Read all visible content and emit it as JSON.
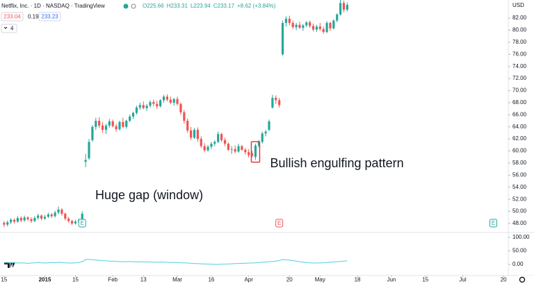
{
  "header": {
    "symbol": "Netflix, Inc. · 1D · NASDAQ · TradingView",
    "ohlc": [
      "O225.66",
      "H233.31",
      "L223.94",
      "C233.17",
      "+8.62 (+3.84%)"
    ],
    "bid": "233.04",
    "spread": "0.19",
    "ask": "233.23",
    "indicators": "4"
  },
  "chart_data": [
    {
      "type": "candlestick",
      "currency": "USD",
      "up_color": "#26a69a",
      "down_color": "#ef5350",
      "grid": false,
      "annotations": [
        {
          "text": "Huge gap (window)"
        },
        {
          "text": "Bullish engulfing pattern",
          "index": 74
        }
      ],
      "events": [
        {
          "index": 23,
          "label": "E"
        },
        {
          "index": 81,
          "label": "E"
        },
        {
          "index": 144,
          "label": "E"
        }
      ],
      "xlim": [
        -1.2,
        148.4
      ],
      "xticks": [
        {
          "value": 0,
          "label": "15"
        },
        {
          "value": 12,
          "label": "2015"
        },
        {
          "value": 21,
          "label": "15"
        },
        {
          "value": 32,
          "label": "Feb"
        },
        {
          "value": 41,
          "label": "13"
        },
        {
          "value": 51,
          "label": "Mar"
        },
        {
          "value": 61,
          "label": "16"
        },
        {
          "value": 72,
          "label": "Apr"
        },
        {
          "value": 84,
          "label": "20"
        },
        {
          "value": 93,
          "label": "May"
        },
        {
          "value": 104,
          "label": "18"
        },
        {
          "value": 114,
          "label": "Jun"
        },
        {
          "value": 124,
          "label": "15"
        },
        {
          "value": 135,
          "label": "Jul"
        },
        {
          "value": 147,
          "label": "20"
        }
      ],
      "ylim": [
        46.5,
        85
      ],
      "yticks": [
        {
          "value": 48,
          "label": "48.00"
        },
        {
          "value": 50,
          "label": "50.00"
        },
        {
          "value": 52,
          "label": "52.00"
        },
        {
          "value": 54,
          "label": "54.00"
        },
        {
          "value": 56,
          "label": "56.00"
        },
        {
          "value": 58,
          "label": "58.00"
        },
        {
          "value": 60,
          "label": "60.00"
        },
        {
          "value": 62,
          "label": "62.00"
        },
        {
          "value": 64,
          "label": "64.00"
        },
        {
          "value": 66,
          "label": "66.00"
        },
        {
          "value": 68,
          "label": "68.00"
        },
        {
          "value": 70,
          "label": "70.00"
        },
        {
          "value": 72,
          "label": "72.00"
        },
        {
          "value": 74,
          "label": "74.00"
        },
        {
          "value": 76,
          "label": "76.00"
        },
        {
          "value": 78,
          "label": "78.00"
        },
        {
          "value": 80,
          "label": "80.00"
        },
        {
          "value": 82,
          "label": "82.00"
        }
      ],
      "open": [
        48.1,
        47.8,
        48.2,
        48.6,
        48.3,
        48.9,
        48.5,
        49.0,
        48.7,
        48.4,
        48.9,
        49.3,
        48.8,
        49.1,
        49.5,
        49.2,
        49.8,
        50.3,
        49.6,
        48.8,
        48.4,
        48.0,
        48.3,
        48.5,
        58.2,
        58.8,
        61.8,
        64.0,
        65.0,
        64.2,
        63.5,
        64.2,
        64.9,
        64.1,
        63.6,
        64.8,
        64.0,
        65.0,
        65.7,
        66.3,
        67.2,
        67.6,
        67.1,
        67.5,
        68.1,
        67.8,
        67.4,
        68.4,
        69.0,
        68.5,
        68.0,
        68.6,
        67.8,
        66.4,
        65.0,
        63.4,
        62.2,
        63.5,
        62.0,
        60.8,
        60.1,
        60.7,
        61.2,
        61.5,
        62.8,
        61.8,
        61.2,
        60.2,
        60.3,
        59.9,
        60.8,
        60.2,
        59.8,
        59.6,
        59.0,
        60.9,
        61.5,
        62.9,
        63.5,
        67.2,
        68.8,
        68.4,
        76.0,
        81.2,
        81.9,
        81.2,
        80.5,
        80.9,
        80.4,
        80.8,
        81.3,
        80.7,
        80.1,
        80.6,
        80.2,
        79.7,
        81.2,
        80.3,
        81.6,
        82.6,
        84.5,
        83.4
      ],
      "high": [
        48.4,
        48.5,
        48.9,
        48.8,
        49.2,
        49.2,
        49.3,
        49.2,
        49.0,
        49.2,
        49.6,
        49.5,
        49.4,
        49.8,
        49.7,
        50.1,
        50.8,
        50.5,
        49.8,
        49.1,
        48.6,
        48.6,
        48.8,
        50.0,
        59.5,
        62.0,
        64.3,
        65.5,
        65.6,
        64.8,
        64.5,
        65.3,
        65.2,
        64.5,
        65.0,
        65.5,
        65.2,
        66.0,
        66.5,
        67.5,
        68.0,
        68.2,
        67.8,
        68.4,
        68.5,
        68.3,
        68.6,
        69.3,
        69.4,
        69.0,
        68.8,
        69.0,
        68.0,
        66.8,
        65.4,
        64.0,
        63.8,
        63.9,
        62.4,
        61.3,
        61.0,
        61.5,
        61.8,
        63.2,
        63.0,
        62.2,
        61.4,
        60.8,
        60.9,
        61.2,
        61.0,
        60.5,
        60.3,
        60.0,
        61.2,
        61.8,
        63.2,
        63.5,
        65.2,
        69.3,
        69.2,
        68.8,
        81.6,
        82.3,
        82.4,
        81.6,
        81.2,
        81.4,
        81.0,
        81.5,
        81.6,
        81.1,
        80.9,
        81.2,
        80.6,
        81.5,
        81.4,
        81.8,
        82.8,
        85.0,
        84.9,
        84.6
      ],
      "low": [
        47.4,
        47.5,
        47.9,
        48.0,
        48.1,
        48.2,
        48.3,
        48.4,
        48.1,
        48.2,
        48.6,
        48.5,
        48.6,
        48.9,
        48.9,
        49.0,
        49.5,
        49.3,
        48.5,
        48.1,
        47.7,
        47.8,
        48.0,
        48.3,
        57.3,
        58.5,
        61.5,
        63.5,
        63.8,
        63.0,
        62.8,
        63.9,
        63.9,
        63.2,
        63.4,
        63.8,
        63.7,
        64.8,
        65.3,
        66.0,
        66.8,
        66.9,
        66.6,
        67.2,
        67.4,
        67.0,
        67.2,
        68.0,
        68.2,
        67.8,
        67.5,
        67.5,
        66.0,
        64.5,
        63.0,
        61.8,
        62.0,
        61.5,
        60.5,
        59.8,
        59.9,
        60.3,
        60.8,
        61.3,
        61.5,
        60.8,
        60.0,
        59.5,
        59.6,
        59.7,
        60.0,
        59.4,
        58.9,
        59.0,
        58.5,
        60.6,
        61.2,
        62.4,
        63.3,
        67.0,
        67.8,
        67.2,
        75.8,
        80.6,
        80.8,
        80.2,
        80.0,
        80.2,
        79.9,
        80.5,
        80.4,
        79.8,
        79.7,
        79.9,
        79.4,
        79.5,
        79.9,
        80.1,
        81.3,
        82.4,
        83.0,
        83.1
      ],
      "close": [
        47.8,
        48.2,
        48.6,
        48.3,
        48.9,
        48.5,
        49.0,
        48.7,
        48.4,
        48.9,
        49.3,
        48.8,
        49.1,
        49.5,
        49.2,
        49.8,
        50.3,
        49.6,
        48.8,
        48.4,
        48.0,
        48.3,
        48.5,
        49.6,
        58.5,
        61.5,
        64.0,
        65.0,
        64.2,
        63.5,
        64.2,
        64.9,
        64.1,
        63.6,
        64.8,
        64.0,
        65.0,
        65.7,
        66.3,
        67.2,
        67.6,
        67.1,
        67.5,
        68.1,
        67.8,
        67.4,
        68.4,
        69.0,
        68.5,
        68.0,
        68.6,
        67.8,
        66.4,
        65.0,
        63.4,
        62.2,
        63.5,
        62.0,
        60.8,
        60.1,
        60.7,
        61.2,
        61.5,
        62.8,
        61.8,
        61.2,
        60.2,
        60.3,
        59.9,
        60.8,
        60.2,
        59.8,
        59.3,
        59.2,
        60.9,
        61.5,
        62.9,
        63.2,
        64.9,
        68.8,
        68.4,
        67.6,
        81.2,
        81.9,
        81.2,
        80.5,
        80.9,
        80.4,
        80.8,
        81.3,
        80.7,
        80.1,
        80.6,
        80.2,
        79.7,
        81.2,
        80.3,
        81.6,
        82.6,
        84.5,
        83.4,
        84.2
      ]
    },
    {
      "type": "line",
      "color": "#4dd0e1",
      "ylim": [
        -36,
        113
      ],
      "yticks": [
        {
          "value": 0,
          "label": "0.00"
        },
        {
          "value": 50,
          "label": "50.00"
        },
        {
          "value": 100,
          "label": "100.00"
        }
      ],
      "values": [
        6,
        5,
        7,
        6,
        5,
        6,
        5,
        4,
        5,
        6,
        7,
        6,
        5,
        6,
        7,
        6,
        8,
        7,
        6,
        5,
        5,
        6,
        7,
        10,
        18,
        19,
        17,
        16,
        15,
        14,
        13,
        12,
        12,
        11,
        11,
        10,
        10,
        11,
        10,
        9,
        9,
        10,
        9,
        9,
        8,
        8,
        9,
        8,
        8,
        7,
        7,
        7,
        6,
        6,
        5,
        4,
        3,
        3,
        2,
        2,
        1,
        1,
        0,
        0,
        1,
        1,
        2,
        2,
        3,
        3,
        4,
        4,
        5,
        5,
        6,
        7,
        8,
        9,
        10,
        11,
        12,
        14,
        18,
        17,
        16,
        14,
        12,
        10,
        8,
        7,
        6,
        5,
        5,
        6,
        6,
        7,
        8,
        9,
        10,
        11,
        12,
        13
      ]
    }
  ]
}
